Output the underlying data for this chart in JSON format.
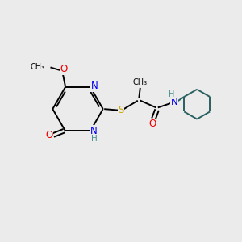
{
  "bg_color": "#ebebeb",
  "colors": {
    "N": "#0000ee",
    "O": "#ee0000",
    "S": "#ccaa00",
    "C": "#000000",
    "H": "#4a9090",
    "ring": "#2a6060"
  },
  "lw": 1.4,
  "font_size": 8.5,
  "figsize": [
    3.0,
    3.0
  ],
  "dpi": 100
}
